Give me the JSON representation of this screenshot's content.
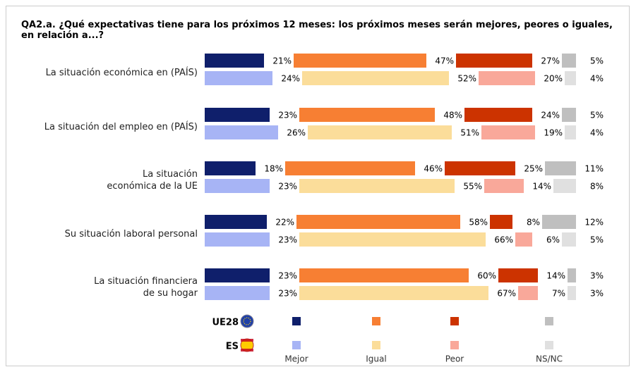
{
  "chart_data": {
    "type": "bar",
    "title": "QA2.a. ¿Qué expectativas tiene para los próximos 12 meses: los próximos meses serán mejores, peores o iguales, en relación a...?",
    "categories": [
      "La situación económica en (PAÍS)",
      "La situación del empleo en (PAÍS)",
      "La situación\neconómica de la UE",
      "Su situación laboral personal",
      "La situación financiera\nde su hogar"
    ],
    "groups": [
      {
        "name": "UE28",
        "series": [
          {
            "name": "Mejor",
            "color": "#0f1f6b",
            "values": [
              21,
              23,
              18,
              22,
              23
            ],
            "value_labels": [
              "21%",
              "23%",
              "18%",
              "22%",
              "23%"
            ]
          },
          {
            "name": "Igual",
            "color": "#f77f33",
            "values": [
              47,
              48,
              46,
              58,
              60
            ],
            "value_labels": [
              "47%",
              "48%",
              "46%",
              "58%",
              "60%"
            ]
          },
          {
            "name": "Peor",
            "color": "#cc3300",
            "values": [
              27,
              24,
              25,
              8,
              14
            ],
            "value_labels": [
              "27%",
              "24%",
              "25%",
              "8%",
              "14%"
            ]
          },
          {
            "name": "NS/NC",
            "color": "#bfbfbf",
            "values": [
              5,
              5,
              11,
              12,
              3
            ],
            "value_labels": [
              "5%",
              "5%",
              "11%",
              "12%",
              "3%"
            ]
          }
        ]
      },
      {
        "name": "ES",
        "series": [
          {
            "name": "Mejor",
            "color": "#a7b4f5",
            "values": [
              24,
              26,
              23,
              23,
              23
            ],
            "value_labels": [
              "24%",
              "26%",
              "23%",
              "23%",
              "23%"
            ]
          },
          {
            "name": "Igual",
            "color": "#fbdd9a",
            "values": [
              52,
              51,
              55,
              66,
              67
            ],
            "value_labels": [
              "52%",
              "51%",
              "55%",
              "66%",
              "67%"
            ]
          },
          {
            "name": "Peor",
            "color": "#f9a89a",
            "values": [
              20,
              19,
              14,
              6,
              7
            ],
            "value_labels": [
              "20%",
              "19%",
              "14%",
              "6%",
              "7%"
            ]
          },
          {
            "name": "NS/NC",
            "color": "#e0e0e0",
            "values": [
              4,
              4,
              8,
              5,
              3
            ],
            "value_labels": [
              "4%",
              "4%",
              "8%",
              "5%",
              "3%"
            ]
          }
        ]
      }
    ]
  }
}
